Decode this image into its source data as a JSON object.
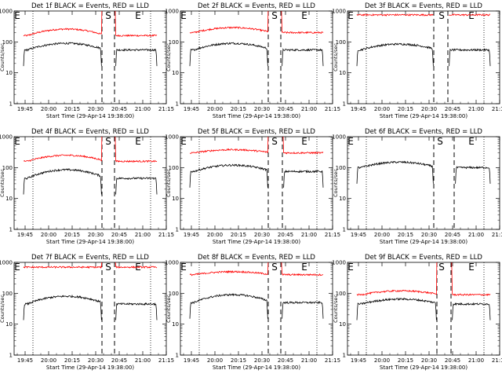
{
  "colors": {
    "events": "#000000",
    "lld": "#ff0000",
    "background": "#ffffff"
  },
  "chart_data": [
    {
      "type": "line",
      "title": "Det 1f BLACK = Events, RED = LLD",
      "xlabel": "Start Time (29-Apr-14 19:38:00)",
      "ylabel": "Counts/sec",
      "yscale": "log",
      "ylim": [
        1,
        1000
      ],
      "xlim": [
        "19:38",
        "21:15"
      ],
      "xticks": [
        "19:45",
        "20:00",
        "20:15",
        "20:30",
        "20:45",
        "21:00",
        "21:15"
      ],
      "yticks": [
        "1",
        "10",
        "100",
        "1000"
      ],
      "markers": {
        "S": "20:38",
        "E": "20:57"
      },
      "dotted_lines": [
        "19:50",
        "21:05"
      ],
      "gaps": [
        [
          "20:34",
          "20:42"
        ]
      ],
      "series": [
        {
          "name": "LLD",
          "color": "red",
          "shape": "bump",
          "base": 160,
          "peak": 260,
          "spike": 2000
        },
        {
          "name": "Events",
          "color": "black",
          "shape": "bump",
          "base": 55,
          "peak": 90
        }
      ]
    },
    {
      "type": "line",
      "title": "Det 2f BLACK = Events, RED = LLD",
      "xlabel": "Start Time (29-Apr-14 19:38:00)",
      "ylabel": "Counts/sec",
      "yscale": "log",
      "ylim": [
        1,
        1000
      ],
      "xlim": [
        "19:38",
        "21:15"
      ],
      "xticks": [
        "19:45",
        "20:00",
        "20:15",
        "20:30",
        "20:45",
        "21:00",
        "21:15"
      ],
      "yticks": [
        "1",
        "10",
        "100",
        "1000"
      ],
      "markers": {
        "S": "20:38",
        "E": "20:57"
      },
      "dotted_lines": [
        "19:50",
        "21:05"
      ],
      "gaps": [
        [
          "20:34",
          "20:42"
        ]
      ],
      "series": [
        {
          "name": "LLD",
          "color": "red",
          "shape": "bump",
          "base": 200,
          "peak": 290,
          "spike": 2000
        },
        {
          "name": "Events",
          "color": "black",
          "shape": "bump",
          "base": 55,
          "peak": 90
        }
      ]
    },
    {
      "type": "line",
      "title": "Det 3f BLACK = Events, RED = LLD",
      "xlabel": "Start Time (29-Apr-14 19:38:00)",
      "ylabel": "Counts/sec",
      "yscale": "log",
      "ylim": [
        1,
        1000
      ],
      "xlim": [
        "19:38",
        "21:15"
      ],
      "xticks": [
        "19:45",
        "20:00",
        "20:15",
        "20:30",
        "20:45",
        "21:00",
        "21:15"
      ],
      "yticks": [
        "1",
        "10",
        "100",
        "1000"
      ],
      "markers": {
        "S": "20:38",
        "E": "20:57"
      },
      "dotted_lines": [
        "19:50",
        "21:05"
      ],
      "gaps": [
        [
          "20:33",
          "20:42"
        ]
      ],
      "series": [
        {
          "name": "LLD",
          "color": "red",
          "shape": "flat",
          "base": 750,
          "peak": 750
        },
        {
          "name": "Events",
          "color": "black",
          "shape": "bump",
          "base": 55,
          "peak": 85
        }
      ]
    },
    {
      "type": "line",
      "title": "Det 4f BLACK = Events, RED = LLD",
      "xlabel": "Start Time (29-Apr-14 19:38:00)",
      "ylabel": "Counts/sec",
      "yscale": "log",
      "ylim": [
        1,
        1000
      ],
      "xlim": [
        "19:38",
        "21:15"
      ],
      "xticks": [
        "19:45",
        "20:00",
        "20:15",
        "20:30",
        "20:45",
        "21:00",
        "21:15"
      ],
      "yticks": [
        "1",
        "10",
        "100",
        "1000"
      ],
      "markers": {
        "S": "20:38",
        "E": "20:57"
      },
      "dotted_lines": [
        "19:50",
        "21:05"
      ],
      "gaps": [
        [
          "20:34",
          "20:42"
        ]
      ],
      "series": [
        {
          "name": "LLD",
          "color": "red",
          "shape": "bump",
          "base": 160,
          "peak": 250,
          "spike": 2000
        },
        {
          "name": "Events",
          "color": "black",
          "shape": "bump",
          "base": 45,
          "peak": 85
        }
      ]
    },
    {
      "type": "line",
      "title": "Det 5f BLACK = Events, RED = LLD",
      "xlabel": "Start Time (29-Apr-14 19:38:00)",
      "ylabel": "Counts/sec",
      "yscale": "log",
      "ylim": [
        1,
        1000
      ],
      "xlim": [
        "19:38",
        "21:15"
      ],
      "xticks": [
        "19:45",
        "20:00",
        "20:15",
        "20:30",
        "20:45",
        "21:00",
        "21:15"
      ],
      "yticks": [
        "1",
        "10",
        "100",
        "1000"
      ],
      "markers": {
        "S": "20:38",
        "E": "20:57"
      },
      "dotted_lines": [
        "19:50",
        "21:05"
      ],
      "gaps": [
        [
          "20:34",
          "20:43"
        ]
      ],
      "series": [
        {
          "name": "LLD",
          "color": "red",
          "shape": "bump",
          "base": 300,
          "peak": 380,
          "spike": 2000
        },
        {
          "name": "Events",
          "color": "black",
          "shape": "bump",
          "base": 75,
          "peak": 120
        }
      ]
    },
    {
      "type": "line",
      "title": "Det 6f BLACK = Events, RED = LLD",
      "xlabel": "Start Time (29-Apr-14 19:38:00)",
      "ylabel": "Counts/sec",
      "yscale": "log",
      "ylim": [
        1,
        1000
      ],
      "xlim": [
        "19:38",
        "21:15"
      ],
      "xticks": [
        "19:45",
        "20:00",
        "20:15",
        "20:30",
        "20:45",
        "21:00",
        "21:15"
      ],
      "yticks": [
        "1",
        "10",
        "100",
        "1000"
      ],
      "markers": {
        "S": "20:37",
        "E": "20:57"
      },
      "dotted_lines": [
        "19:50",
        "21:05"
      ],
      "gaps": [
        [
          "20:33",
          "20:46"
        ]
      ],
      "series": [
        {
          "name": "Events",
          "color": "black",
          "shape": "bump",
          "base": 100,
          "peak": 150
        }
      ]
    },
    {
      "type": "line",
      "title": "Det 7f BLACK = Events, RED = LLD",
      "xlabel": "Start Time (29-Apr-14 19:38:00)",
      "ylabel": "Counts/sec",
      "yscale": "log",
      "ylim": [
        1,
        1000
      ],
      "xlim": [
        "19:38",
        "21:15"
      ],
      "xticks": [
        "19:45",
        "20:00",
        "20:15",
        "20:30",
        "20:45",
        "21:00",
        "21:15"
      ],
      "yticks": [
        "1",
        "10",
        "100",
        "1000"
      ],
      "markers": {
        "S": "20:38",
        "E": "20:57"
      },
      "dotted_lines": [
        "19:50",
        "21:05"
      ],
      "gaps": [
        [
          "20:34",
          "20:42"
        ]
      ],
      "series": [
        {
          "name": "LLD",
          "color": "red",
          "shape": "flat",
          "base": 700,
          "peak": 720,
          "spike": 1500
        },
        {
          "name": "Events",
          "color": "black",
          "shape": "bump",
          "base": 45,
          "peak": 80
        }
      ]
    },
    {
      "type": "line",
      "title": "Det 8f BLACK = Events, RED = LLD",
      "xlabel": "Start Time (29-Apr-14 19:38:00)",
      "ylabel": "Counts/sec",
      "yscale": "log",
      "ylim": [
        1,
        1000
      ],
      "xlim": [
        "19:38",
        "21:15"
      ],
      "xticks": [
        "19:45",
        "20:00",
        "20:15",
        "20:30",
        "20:45",
        "21:00",
        "21:15"
      ],
      "yticks": [
        "1",
        "10",
        "100",
        "1000"
      ],
      "markers": {
        "S": "20:38",
        "E": "20:57"
      },
      "dotted_lines": [
        "19:50",
        "21:05"
      ],
      "gaps": [
        [
          "20:34",
          "20:42"
        ]
      ],
      "series": [
        {
          "name": "LLD",
          "color": "red",
          "shape": "bump",
          "base": 400,
          "peak": 500,
          "spike": 1500
        },
        {
          "name": "Events",
          "color": "black",
          "shape": "bump",
          "base": 50,
          "peak": 90
        }
      ]
    },
    {
      "type": "line",
      "title": "Det 9f BLACK = Events, RED = LLD",
      "xlabel": "Start Time (29-Apr-14 19:38:00)",
      "ylabel": "Counts/sec",
      "yscale": "log",
      "ylim": [
        1,
        1000
      ],
      "xlim": [
        "19:38",
        "21:15"
      ],
      "xticks": [
        "19:45",
        "20:00",
        "20:15",
        "20:30",
        "20:45",
        "21:00",
        "21:15"
      ],
      "yticks": [
        "1",
        "10",
        "100",
        "1000"
      ],
      "markers": {
        "S": "20:38",
        "E": "20:57"
      },
      "dotted_lines": [
        "19:50",
        "21:05"
      ],
      "gaps": [
        [
          "20:35",
          "20:44"
        ]
      ],
      "series": [
        {
          "name": "LLD",
          "color": "red",
          "shape": "bump",
          "base": 90,
          "peak": 120,
          "spike": 2000
        },
        {
          "name": "Events",
          "color": "black",
          "shape": "bump",
          "base": 45,
          "peak": 65
        }
      ]
    }
  ]
}
